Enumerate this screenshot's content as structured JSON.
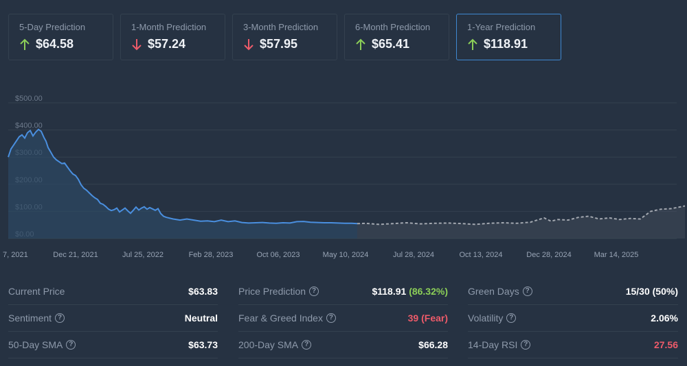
{
  "colors": {
    "up": "#8ccf58",
    "down": "#ee5b6a",
    "accent": "#3f89d2",
    "history_line": "#4a8fdf",
    "forecast_line": "#a3a8b0"
  },
  "cards": [
    {
      "label": "5-Day Prediction",
      "value": "$64.58",
      "trend": "up"
    },
    {
      "label": "1-Month Prediction",
      "value": "$57.24",
      "trend": "down"
    },
    {
      "label": "3-Month Prediction",
      "value": "$57.95",
      "trend": "down"
    },
    {
      "label": "6-Month Prediction",
      "value": "$65.41",
      "trend": "up"
    },
    {
      "label": "1-Year Prediction",
      "value": "$118.91",
      "trend": "up",
      "active": true
    }
  ],
  "chart_data": {
    "type": "line",
    "y_ticks": [
      "$500.00",
      "$400.00",
      "$300.00",
      "$200.00",
      "$100.00",
      "$0.00"
    ],
    "x_ticks": [
      "7, 2021",
      "Dec 21, 2021",
      "Jul 25, 2022",
      "Feb 28, 2023",
      "Oct 06, 2023",
      "May 10, 2024",
      "Jul 28, 2024",
      "Oct 13, 2024",
      "Dec 28, 2024",
      "Mar 14, 2025"
    ],
    "ylim": [
      0,
      500
    ],
    "series": [
      {
        "values": [
          [
            0,
            300
          ],
          [
            4,
            330
          ],
          [
            8,
            345
          ],
          [
            12,
            360
          ],
          [
            16,
            375
          ],
          [
            20,
            382
          ],
          [
            24,
            370
          ],
          [
            28,
            390
          ],
          [
            32,
            398
          ],
          [
            36,
            378
          ],
          [
            40,
            392
          ],
          [
            44,
            402
          ],
          [
            48,
            395
          ],
          [
            52,
            372
          ],
          [
            55,
            358
          ],
          [
            58,
            335
          ],
          [
            62,
            318
          ],
          [
            66,
            300
          ],
          [
            70,
            290
          ],
          [
            74,
            283
          ],
          [
            78,
            276
          ],
          [
            82,
            278
          ],
          [
            86,
            264
          ],
          [
            90,
            250
          ],
          [
            94,
            238
          ],
          [
            98,
            232
          ],
          [
            102,
            218
          ],
          [
            106,
            198
          ],
          [
            110,
            185
          ],
          [
            114,
            178
          ],
          [
            118,
            168
          ],
          [
            122,
            158
          ],
          [
            126,
            150
          ],
          [
            130,
            144
          ],
          [
            134,
            130
          ],
          [
            138,
            126
          ],
          [
            142,
            118
          ],
          [
            146,
            108
          ],
          [
            150,
            103
          ],
          [
            154,
            106
          ],
          [
            158,
            112
          ],
          [
            162,
            98
          ],
          [
            166,
            105
          ],
          [
            170,
            112
          ],
          [
            174,
            102
          ],
          [
            178,
            93
          ],
          [
            182,
            104
          ],
          [
            186,
            116
          ],
          [
            190,
            105
          ],
          [
            194,
            112
          ],
          [
            198,
            117
          ],
          [
            202,
            108
          ],
          [
            206,
            114
          ],
          [
            210,
            109
          ],
          [
            214,
            104
          ],
          [
            218,
            110
          ],
          [
            222,
            92
          ],
          [
            226,
            82
          ],
          [
            230,
            78
          ],
          [
            240,
            72
          ],
          [
            250,
            68
          ],
          [
            260,
            72
          ],
          [
            270,
            68
          ],
          [
            280,
            64
          ],
          [
            290,
            65
          ],
          [
            300,
            62
          ],
          [
            310,
            68
          ],
          [
            320,
            62
          ],
          [
            330,
            65
          ],
          [
            340,
            59
          ],
          [
            350,
            57
          ],
          [
            360,
            58
          ],
          [
            370,
            59
          ],
          [
            380,
            57
          ],
          [
            390,
            56
          ],
          [
            400,
            58
          ],
          [
            410,
            57
          ],
          [
            420,
            62
          ],
          [
            430,
            63
          ],
          [
            440,
            60
          ],
          [
            450,
            59
          ],
          [
            460,
            58
          ],
          [
            470,
            58
          ],
          [
            480,
            57
          ],
          [
            490,
            56
          ],
          [
            500,
            56
          ],
          [
            508,
            55
          ]
        ]
      },
      {
        "values": [
          [
            508,
            55
          ],
          [
            520,
            56
          ],
          [
            540,
            52
          ],
          [
            560,
            55
          ],
          [
            580,
            58
          ],
          [
            600,
            54
          ],
          [
            620,
            56
          ],
          [
            640,
            57
          ],
          [
            660,
            55
          ],
          [
            680,
            52
          ],
          [
            700,
            56
          ],
          [
            720,
            58
          ],
          [
            740,
            56
          ],
          [
            760,
            60
          ],
          [
            780,
            76
          ],
          [
            790,
            64
          ],
          [
            800,
            70
          ],
          [
            815,
            68
          ],
          [
            830,
            78
          ],
          [
            845,
            82
          ],
          [
            860,
            72
          ],
          [
            875,
            76
          ],
          [
            890,
            70
          ],
          [
            905,
            74
          ],
          [
            920,
            72
          ],
          [
            935,
            100
          ],
          [
            950,
            108
          ],
          [
            965,
            110
          ],
          [
            985,
            120
          ]
        ]
      }
    ]
  },
  "stats": [
    [
      {
        "label": "Current Price",
        "value": "$63.83"
      },
      {
        "label": "Sentiment",
        "value": "Neutral",
        "help": true
      },
      {
        "label": "50-Day SMA",
        "value": "$63.73",
        "help": true
      }
    ],
    [
      {
        "label": "Price Prediction",
        "value": "$118.91",
        "value_extra": "(86.32%)",
        "extra_color": "green",
        "help": true
      },
      {
        "label": "Fear & Greed Index",
        "value": "39 (Fear)",
        "value_color": "red",
        "help": true
      },
      {
        "label": "200-Day SMA",
        "value": "$66.28",
        "help": true
      }
    ],
    [
      {
        "label": "Green Days",
        "value": "15/30 (50%)",
        "help": true
      },
      {
        "label": "Volatility",
        "value": "2.06%",
        "help": true
      },
      {
        "label": "14-Day RSI",
        "value": "27.56",
        "value_color": "red",
        "help": true
      }
    ]
  ]
}
